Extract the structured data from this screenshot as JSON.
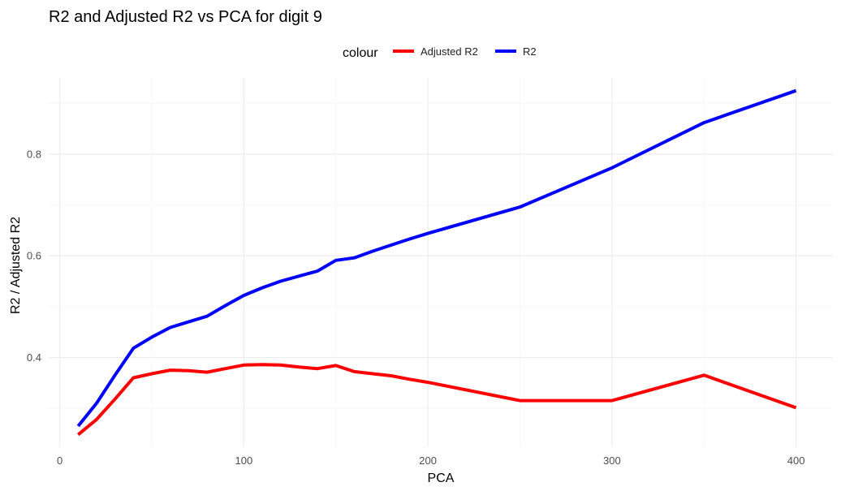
{
  "chart_data": {
    "type": "line",
    "title": "R2 and Adjusted R2 vs PCA for digit 9",
    "xlabel": "PCA",
    "ylabel": "R2 / Adjusted R2",
    "xlim": [
      -6,
      420
    ],
    "ylim": [
      0.225,
      0.95
    ],
    "x_ticks": [
      0,
      100,
      200,
      300,
      400
    ],
    "x_tick_labels": [
      "0",
      "100",
      "200",
      "300",
      "400"
    ],
    "y_ticks": [
      0.4,
      0.6,
      0.8
    ],
    "y_tick_labels": [
      "0.4",
      "0.6",
      "0.8"
    ],
    "grid": true,
    "legend": {
      "title": "colour",
      "position": "top",
      "entries": [
        {
          "label": "Adjusted R2",
          "color": "#FF0000"
        },
        {
          "label": "R2",
          "color": "#0000FF"
        }
      ]
    },
    "series": [
      {
        "name": "Adjusted R2",
        "color": "#FF0000",
        "x": [
          10,
          20,
          30,
          40,
          50,
          60,
          70,
          80,
          90,
          100,
          110,
          120,
          130,
          140,
          150,
          160,
          170,
          180,
          190,
          200,
          250,
          300,
          350,
          400
        ],
        "y": [
          0.248,
          0.278,
          0.318,
          0.36,
          0.368,
          0.375,
          0.374,
          0.371,
          0.378,
          0.385,
          0.386,
          0.385,
          0.381,
          0.378,
          0.384,
          0.372,
          0.368,
          0.364,
          0.357,
          0.351,
          0.315,
          0.315,
          0.365,
          0.301
        ]
      },
      {
        "name": "R2",
        "color": "#0000FF",
        "x": [
          10,
          20,
          30,
          40,
          50,
          60,
          70,
          80,
          90,
          100,
          110,
          120,
          130,
          140,
          150,
          160,
          170,
          180,
          190,
          200,
          250,
          300,
          350,
          400
        ],
        "y": [
          0.265,
          0.31,
          0.365,
          0.418,
          0.44,
          0.459,
          0.47,
          0.481,
          0.502,
          0.522,
          0.537,
          0.55,
          0.56,
          0.57,
          0.591,
          0.596,
          0.609,
          0.621,
          0.633,
          0.644,
          0.696,
          0.773,
          0.862,
          0.925
        ]
      }
    ]
  }
}
